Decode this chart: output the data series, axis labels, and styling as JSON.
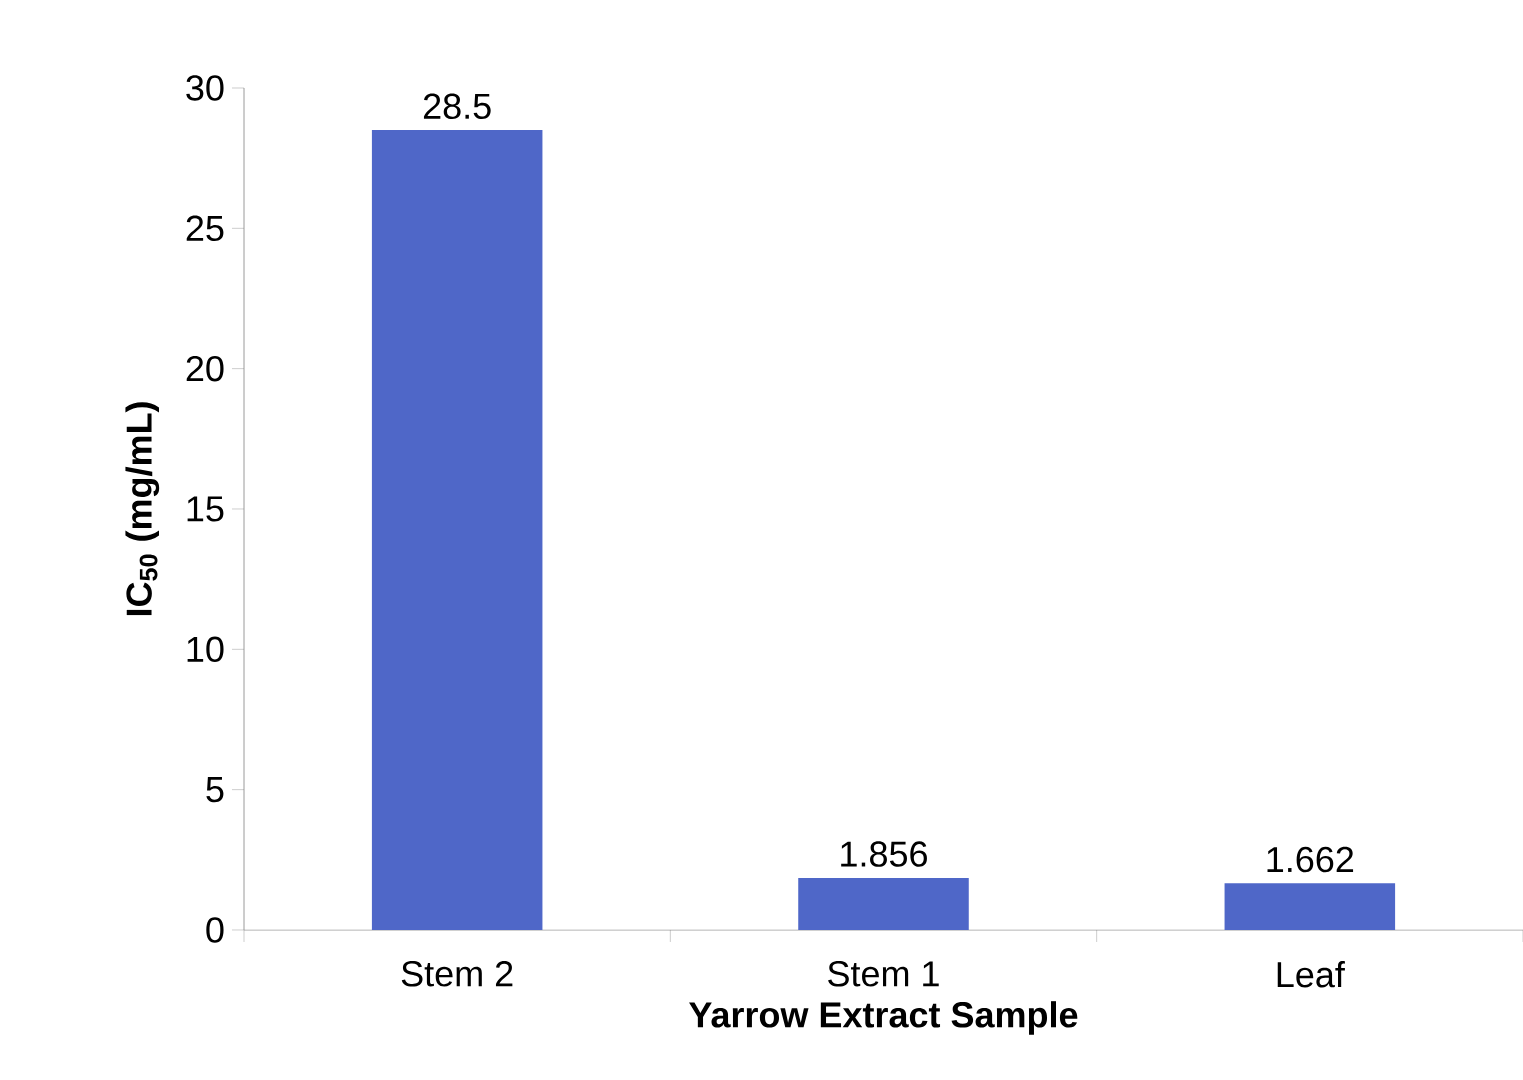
{
  "chart_data": {
    "type": "bar",
    "xlabel": "Yarrow Extract Sample",
    "ylabel": "IC$_{50}$ (mg/mL)",
    "categories": [
      "Stem 2",
      "Stem 1",
      "Leaf"
    ],
    "values": [
      28.5,
      1.856,
      1.662
    ],
    "color": "#4f67c8",
    "ylim": [
      0,
      30
    ],
    "yticks": [
      0,
      5,
      10,
      15,
      20,
      25,
      30
    ],
    "data_labels": true,
    "grid": false
  }
}
